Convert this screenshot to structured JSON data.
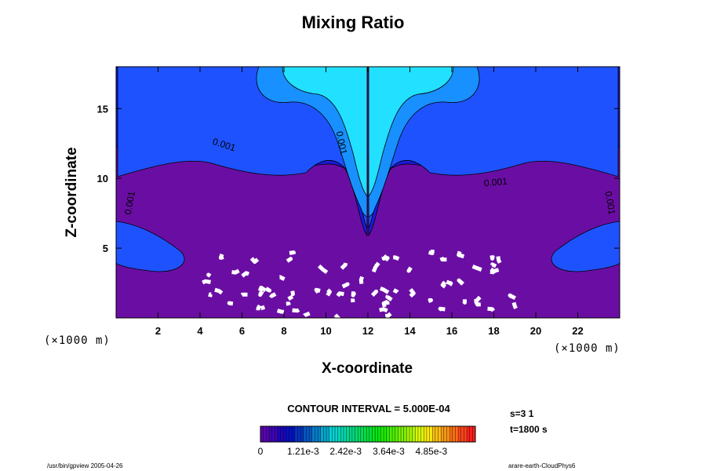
{
  "chart_data": {
    "type": "heatmap",
    "title": "Mixing Ratio",
    "xlabel": "X-coordinate",
    "ylabel": "Z-coordinate",
    "x_unit": "(×1000 m)",
    "x_unit_right": "(×1000 m)",
    "xlim": [
      0,
      24
    ],
    "ylim": [
      0,
      18
    ],
    "x_ticks": [
      "2",
      "4",
      "6",
      "8",
      "10",
      "12",
      "14",
      "16",
      "18",
      "20",
      "22"
    ],
    "y_ticks": [
      "5",
      "10",
      "15"
    ],
    "contour_labels": [
      "0.001",
      "0.001",
      "0.001",
      "0.001",
      "0.001"
    ],
    "contour_interval_label": "CONTOUR INTERVAL = 5.000E-04",
    "colorbar": {
      "min": 0,
      "max": 0.0061,
      "tick_labels": [
        "0",
        "1.21e-3",
        "2.42e-3",
        "3.64e-3",
        "4.85e-3"
      ],
      "levels": 25
    }
  },
  "stats": {
    "s": "s=3 1",
    "t": "t=1800 s"
  },
  "footer": {
    "left": "/usr/bin/gpview 2005-04-26",
    "right": "arare-earth-CloudPhys6"
  },
  "colors": {
    "background_fill": "#6a0ea3",
    "cloud_core": "#22e0ff",
    "outer_blue": "#1d3cf0"
  }
}
